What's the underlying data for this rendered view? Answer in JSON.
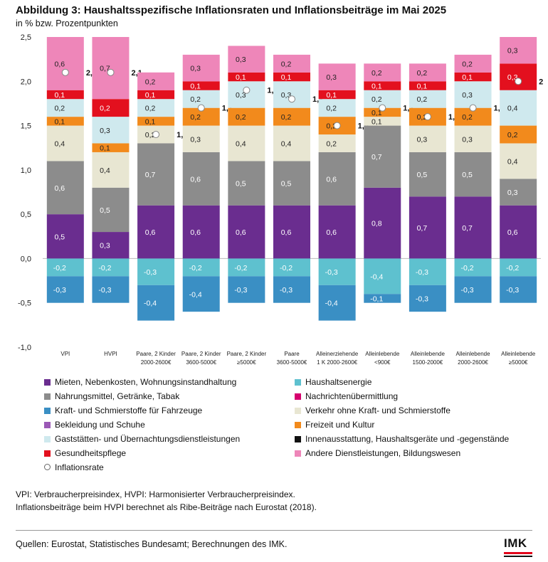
{
  "header": {
    "title": "Abbildung 3: Haushaltsspezifische Inflationsraten und Inflationsbeiträge im Mai 2025",
    "subtitle": "in % bzw. Prozentpunkten"
  },
  "chart_data": {
    "type": "bar",
    "stacked": true,
    "ylim": [
      -1.0,
      2.5
    ],
    "yticks": [
      "2,5",
      "2,0",
      "1,5",
      "1,0",
      "0,5",
      "0,0",
      "-0,5",
      "-1,0"
    ],
    "categories": [
      [
        "VPI"
      ],
      [
        "HVPI"
      ],
      [
        "Paare, 2 Kinder",
        "2000-2600€"
      ],
      [
        "Paare, 2 Kinder",
        "3600-5000€"
      ],
      [
        "Paare, 2 Kinder",
        "≥5000€"
      ],
      [
        "Paare",
        "3600-5000€"
      ],
      [
        "Alleinerziehende",
        "1 K 2000-2600€"
      ],
      [
        "Alleinlebende",
        "<900€"
      ],
      [
        "Alleinlebende",
        "1500-2000€"
      ],
      [
        "Alleinlebende",
        "2000-2600€"
      ],
      [
        "Alleinlebende",
        "≥5000€"
      ]
    ],
    "series": [
      {
        "name": "Mieten, Nebenkosten, Wohnungsinstandhaltung",
        "color": "#6a2d8f",
        "values": [
          0.5,
          0.3,
          0.6,
          0.6,
          0.6,
          0.6,
          0.6,
          0.8,
          0.7,
          0.7,
          0.6
        ]
      },
      {
        "name": "Nahrungsmittel, Getränke, Tabak",
        "color": "#8c8c8c",
        "values": [
          0.6,
          0.5,
          0.7,
          0.6,
          0.5,
          0.5,
          0.6,
          0.7,
          0.5,
          0.5,
          0.3
        ]
      },
      {
        "name": "Verkehr ohne Kraft- und Schmierstoffe",
        "color": "#e8e6d2",
        "values": [
          0.4,
          0.4,
          0.2,
          0.3,
          0.4,
          0.4,
          0.2,
          0.1,
          0.3,
          0.3,
          0.4
        ]
      },
      {
        "name": "Freizeit und Kultur",
        "color": "#f28a1c",
        "values": [
          0.1,
          0.1,
          0.1,
          0.2,
          0.2,
          0.2,
          0.2,
          0.1,
          0.2,
          0.2,
          0.2
        ]
      },
      {
        "name": "Gaststätten- und Übernachtungsdienstleistungen",
        "color": "#cfe9ee",
        "values": [
          0.2,
          0.3,
          0.2,
          0.2,
          0.3,
          0.3,
          0.2,
          0.2,
          0.2,
          0.3,
          0.4
        ]
      },
      {
        "name": "Gesundheitspflege",
        "color": "#e3101e",
        "values": [
          0.1,
          0.2,
          0.1,
          0.1,
          0.1,
          0.1,
          0.1,
          0.1,
          0.1,
          0.1,
          0.3
        ]
      },
      {
        "name": "Andere Dienstleistungen, Bildungswesen",
        "color": "#ee86b9",
        "values": [
          0.6,
          0.7,
          0.2,
          0.3,
          0.3,
          0.2,
          0.3,
          0.2,
          0.2,
          0.2,
          0.3
        ]
      },
      {
        "name": "Haushaltsenergie",
        "color": "#5ec1cf",
        "values": [
          -0.2,
          -0.2,
          -0.3,
          -0.2,
          -0.2,
          -0.2,
          -0.3,
          -0.4,
          -0.3,
          -0.2,
          -0.2
        ]
      },
      {
        "name": "Kraft- und Schmierstoffe für Fahrzeuge",
        "color": "#3a8fc4",
        "values": [
          -0.3,
          -0.3,
          -0.4,
          -0.4,
          -0.3,
          -0.3,
          -0.4,
          -0.1,
          -0.3,
          -0.3,
          -0.3
        ]
      }
    ],
    "inflation_rate": {
      "name": "Inflationsrate",
      "values": [
        2.1,
        2.1,
        1.4,
        1.7,
        1.9,
        1.8,
        1.5,
        1.7,
        1.6,
        1.7,
        2.0
      ]
    },
    "legend_placement": "bottom",
    "legend": [
      {
        "label": "Mieten, Nebenkosten, Wohnungsinstandhaltung",
        "color": "#6a2d8f",
        "kind": "swatch"
      },
      {
        "label": "Haushaltsenergie",
        "color": "#5ec1cf",
        "kind": "swatch"
      },
      {
        "label": "Nahrungsmittel, Getränke, Tabak",
        "color": "#8c8c8c",
        "kind": "swatch"
      },
      {
        "label": "Nachrichtenübermittlung",
        "color": "#d6006e",
        "kind": "swatch"
      },
      {
        "label": "Kraft- und Schmierstoffe für Fahrzeuge",
        "color": "#3a8fc4",
        "kind": "swatch"
      },
      {
        "label": "Verkehr ohne Kraft- und Schmierstoffe",
        "color": "#e8e6d2",
        "kind": "swatch"
      },
      {
        "label": "Bekleidung und Schuhe",
        "color": "#9b59b6",
        "kind": "swatch"
      },
      {
        "label": "Freizeit und Kultur",
        "color": "#f28a1c",
        "kind": "swatch"
      },
      {
        "label": "Gaststätten- und Übernachtungsdienstleistungen",
        "color": "#cfe9ee",
        "kind": "swatch"
      },
      {
        "label": "Innenausstattung, Haushaltsgeräte und -gegenstände",
        "color": "#111111",
        "kind": "swatch"
      },
      {
        "label": "Gesundheitspflege",
        "color": "#e3101e",
        "kind": "swatch"
      },
      {
        "label": "Andere Dienstleistungen, Bildungswesen",
        "color": "#ee86b9",
        "kind": "swatch"
      },
      {
        "label": "Inflationsrate",
        "color": "#ffffff",
        "kind": "dot"
      }
    ]
  },
  "notes": {
    "line1": "VPI: Verbraucherpreisindex, HVPI: Harmonisierter Verbraucherpreisindex.",
    "line2": "Inflationsbeiträge beim HVPI berechnet als Ribe-Beiträge nach Eurostat (2018)."
  },
  "footer": {
    "source": "Quellen: Eurostat, Statistisches Bundesamt; Berechnungen des IMK.",
    "logo": "IMK"
  }
}
